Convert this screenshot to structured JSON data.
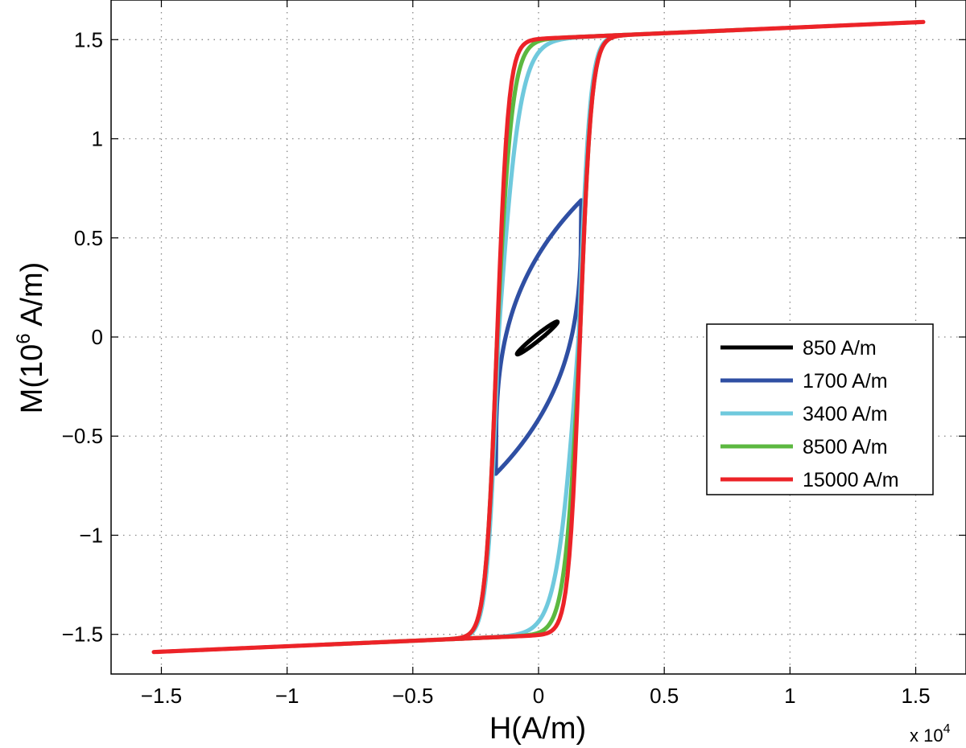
{
  "chart_data": {
    "type": "line",
    "xlabel": "H(A/m)",
    "ylabel_base": "M(10",
    "ylabel_exp": "6",
    "ylabel_rest": " A/m)",
    "x_multiplier_base": "x 10",
    "x_multiplier_exp": "4",
    "xlim": [
      -1.7,
      1.7
    ],
    "ylim": [
      -1.7,
      1.7
    ],
    "grid": true,
    "legend_position": "center-right",
    "x_ticks": [
      -1.5,
      -1,
      -0.5,
      0,
      0.5,
      1,
      1.5
    ],
    "x_tick_labels": [
      "−1.5",
      "−1",
      "−0.5",
      "0",
      "0.5",
      "1",
      "1.5"
    ],
    "y_ticks": [
      -1.5,
      -1,
      -0.5,
      0,
      0.5,
      1,
      1.5
    ],
    "y_tick_labels": [
      "−1.5",
      "−1",
      "−0.5",
      "0",
      "0.5",
      "1",
      "1.5"
    ],
    "series": [
      {
        "name": "850 A/m",
        "color": "#000000",
        "Hmax": 0.085,
        "Mmax": 0.085,
        "Hc": 0.08
      },
      {
        "name": "1700 A/m",
        "color": "#2f4fa3",
        "Hmax": 0.17,
        "Mmax": 0.69,
        "Hc": 0.15
      },
      {
        "name": "3400 A/m",
        "color": "#6fc9dd",
        "Hmax": 0.34,
        "Mmax": 1.5,
        "Hc": 0.16
      },
      {
        "name": "8500 A/m",
        "color": "#5cb840",
        "Hmax": 0.85,
        "Mmax": 1.55,
        "Hc": 0.165
      },
      {
        "name": "15000 A/m",
        "color": "#ec2328",
        "Hmax": 1.53,
        "Mmax": 1.59,
        "Hc": 0.165
      }
    ]
  }
}
